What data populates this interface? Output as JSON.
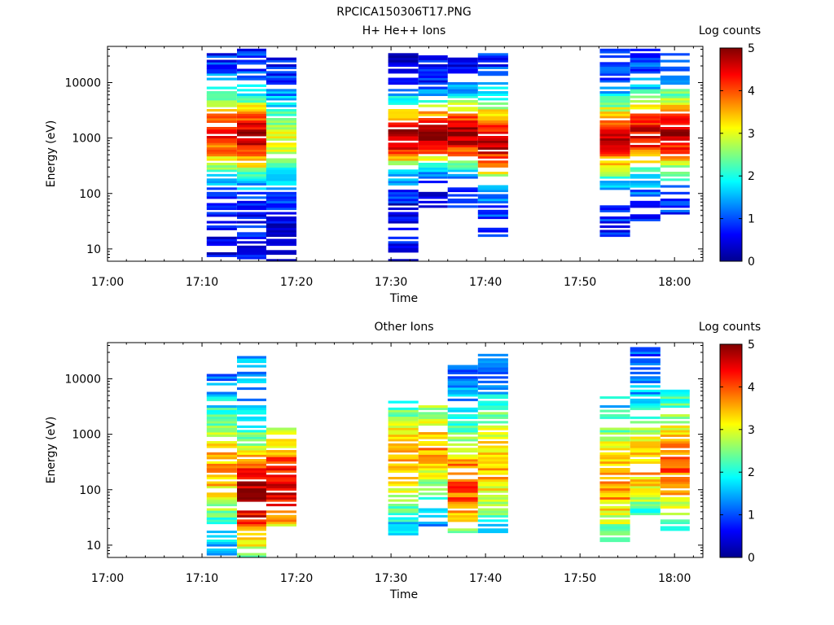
{
  "figure_title": "RPCICA150306T17.PNG",
  "colorbar_label": "Log counts",
  "colorbar_ticks": [
    "0",
    "1",
    "2",
    "3",
    "4",
    "5"
  ],
  "chart_data": [
    {
      "type": "heatmap",
      "title": "H+ He++ Ions",
      "xlabel": "Time",
      "ylabel": "Energy (eV)",
      "yscale": "log",
      "ylim": [
        6,
        45000
      ],
      "xlim_minutes_after_17": [
        0,
        63
      ],
      "xticks": [
        "17:00",
        "17:10",
        "17:20",
        "17:30",
        "17:40",
        "17:50",
        "18:00"
      ],
      "yticks": [
        "10",
        "100",
        "1000",
        "10000"
      ],
      "clim": [
        0,
        5
      ],
      "columns": [
        {
          "t0": 10.5,
          "t1": 13.7,
          "seed": 11,
          "emin": 6,
          "emax": 40000,
          "peak": 1200,
          "amp": 3.6,
          "width": 0.55,
          "base": 0.6
        },
        {
          "t0": 13.7,
          "t1": 16.8,
          "seed": 23,
          "emin": 6,
          "emax": 40000,
          "peak": 1100,
          "amp": 4.1,
          "width": 0.5,
          "base": 0.7
        },
        {
          "t0": 16.8,
          "t1": 20.0,
          "seed": 37,
          "emin": 6,
          "emax": 38000,
          "peak": 900,
          "amp": 2.4,
          "width": 0.6,
          "base": 0.5
        },
        {
          "t0": 29.7,
          "t1": 32.9,
          "seed": 41,
          "emin": 6,
          "emax": 38000,
          "peak": 1100,
          "amp": 4.3,
          "width": 0.45,
          "base": 0.5
        },
        {
          "t0": 32.9,
          "t1": 36.0,
          "seed": 53,
          "emin": 55,
          "emax": 32000,
          "peak": 1200,
          "amp": 4.5,
          "width": 0.4,
          "base": 0.6
        },
        {
          "t0": 36.0,
          "t1": 39.2,
          "seed": 67,
          "emin": 55,
          "emax": 28000,
          "peak": 1200,
          "amp": 4.2,
          "width": 0.45,
          "base": 0.6
        },
        {
          "t0": 39.2,
          "t1": 42.4,
          "seed": 79,
          "emin": 17,
          "emax": 40000,
          "peak": 900,
          "amp": 3.9,
          "width": 0.55,
          "base": 0.7
        },
        {
          "t0": 52.1,
          "t1": 55.3,
          "seed": 83,
          "emin": 17,
          "emax": 40000,
          "peak": 1000,
          "amp": 3.9,
          "width": 0.5,
          "base": 0.7
        },
        {
          "t0": 55.3,
          "t1": 58.5,
          "seed": 97,
          "emin": 28,
          "emax": 40000,
          "peak": 1200,
          "amp": 3.7,
          "width": 0.5,
          "base": 0.8
        },
        {
          "t0": 58.5,
          "t1": 61.6,
          "seed": 101,
          "emin": 38,
          "emax": 35000,
          "peak": 1300,
          "amp": 4.0,
          "width": 0.5,
          "base": 0.8
        }
      ]
    },
    {
      "type": "heatmap",
      "title": "Other Ions",
      "xlabel": "Time",
      "ylabel": "Energy (eV)",
      "yscale": "log",
      "ylim": [
        6,
        45000
      ],
      "xlim_minutes_after_17": [
        0,
        63
      ],
      "xticks": [
        "17:00",
        "17:10",
        "17:20",
        "17:30",
        "17:40",
        "17:50",
        "18:00"
      ],
      "yticks": [
        "10",
        "100",
        "1000",
        "10000"
      ],
      "clim": [
        0,
        5
      ],
      "columns": [
        {
          "t0": 10.5,
          "t1": 13.7,
          "seed": 131,
          "emin": 6,
          "emax": 14000,
          "peak": 250,
          "amp": 2.6,
          "width": 0.8,
          "base": 0.9
        },
        {
          "t0": 13.7,
          "t1": 16.8,
          "seed": 137,
          "emin": 6,
          "emax": 30000,
          "peak": 75,
          "amp": 3.4,
          "width": 0.7,
          "base": 1.4
        },
        {
          "t0": 16.8,
          "t1": 20.0,
          "seed": 149,
          "emin": 22,
          "emax": 1300,
          "peak": 120,
          "amp": 2.9,
          "width": 0.7,
          "base": 1.6
        },
        {
          "t0": 29.7,
          "t1": 32.9,
          "seed": 151,
          "emin": 11,
          "emax": 4000,
          "peak": 400,
          "amp": 2.4,
          "width": 0.8,
          "base": 1.0
        },
        {
          "t0": 32.9,
          "t1": 36.0,
          "seed": 163,
          "emin": 22,
          "emax": 3500,
          "peak": 600,
          "amp": 2.6,
          "width": 0.7,
          "base": 1.0
        },
        {
          "t0": 36.0,
          "t1": 39.2,
          "seed": 173,
          "emin": 17,
          "emax": 17000,
          "peak": 120,
          "amp": 2.8,
          "width": 0.7,
          "base": 1.2
        },
        {
          "t0": 39.2,
          "t1": 42.4,
          "seed": 179,
          "emin": 17,
          "emax": 30000,
          "peak": 300,
          "amp": 2.5,
          "width": 0.8,
          "base": 1.0
        },
        {
          "t0": 52.1,
          "t1": 55.3,
          "seed": 191,
          "emin": 11,
          "emax": 5000,
          "peak": 150,
          "amp": 2.5,
          "width": 0.8,
          "base": 1.2
        },
        {
          "t0": 55.3,
          "t1": 58.5,
          "seed": 193,
          "emin": 35,
          "emax": 39000,
          "peak": 300,
          "amp": 2.5,
          "width": 0.7,
          "base": 1.0
        },
        {
          "t0": 58.5,
          "t1": 61.6,
          "seed": 197,
          "emin": 17,
          "emax": 7000,
          "peak": 300,
          "amp": 2.7,
          "width": 0.8,
          "base": 1.2
        }
      ]
    }
  ]
}
